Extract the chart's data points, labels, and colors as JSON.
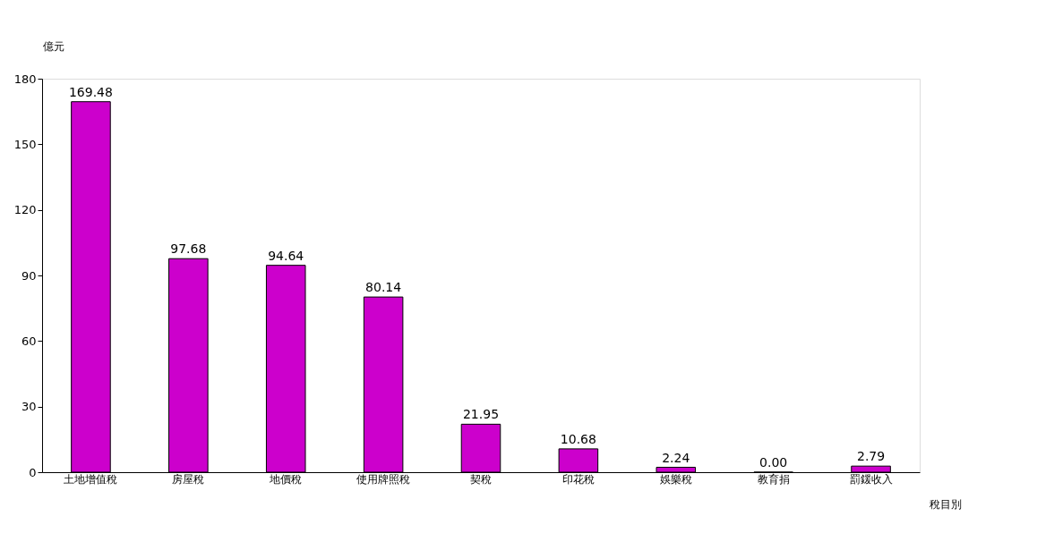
{
  "chart_data": {
    "type": "bar",
    "ylabel": "億元",
    "xlabel": "稅目別",
    "categories": [
      "土地增值稅",
      "房屋稅",
      "地價稅",
      "使用牌照稅",
      "契稅",
      "印花稅",
      "娛樂稅",
      "教育捐",
      "罰鍰收入"
    ],
    "values": [
      169.48,
      97.68,
      94.64,
      80.14,
      21.95,
      10.68,
      2.24,
      0,
      2.79
    ],
    "value_labels": [
      "169.48",
      "97.68",
      "94.64",
      "80.14",
      "21.95",
      "10.68",
      "2.24",
      "0.00",
      "2.79"
    ],
    "color": "#cc00cc",
    "ylim": [
      0,
      180
    ],
    "yticks": [
      0,
      30,
      60,
      90,
      120,
      150,
      180
    ],
    "grid": false
  }
}
